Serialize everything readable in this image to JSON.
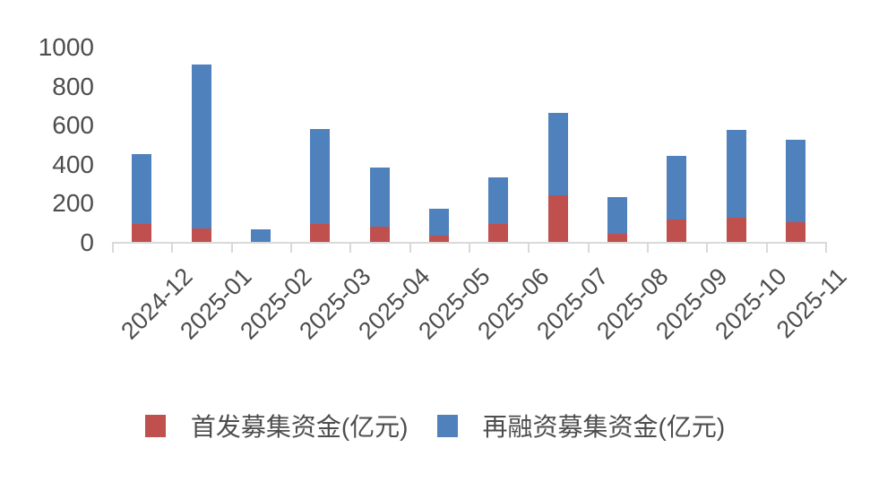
{
  "chart_data": {
    "type": "bar",
    "stacked": true,
    "title": "",
    "categories": [
      "2024-12",
      "2025-01",
      "2025-02",
      "2025-03",
      "2025-04",
      "2025-05",
      "2025-06",
      "2025-07",
      "2025-08",
      "2025-09",
      "2025-10",
      "2025-11"
    ],
    "series": [
      {
        "name": "首发募集资金(亿元)",
        "color": "#C0504D",
        "values": [
          90,
          70,
          0,
          90,
          80,
          30,
          90,
          240,
          40,
          115,
          125,
          100
        ]
      },
      {
        "name": "再融资募集资金(亿元)",
        "color": "#4F81BD",
        "values": [
          360,
          840,
          65,
          490,
          300,
          140,
          240,
          420,
          190,
          325,
          450,
          425
        ]
      }
    ],
    "totals": [
      450,
      910,
      65,
      580,
      380,
      170,
      330,
      660,
      230,
      440,
      575,
      525
    ],
    "ylim": [
      0,
      1000
    ],
    "yticks": [
      0,
      200,
      400,
      600,
      800,
      1000
    ],
    "xlabel": "",
    "ylabel": "",
    "grid": false,
    "legend_position": "bottom",
    "axis_color": "#D9D9D9",
    "label_color": "#4D4D4D",
    "background": "#FFFFFF"
  }
}
